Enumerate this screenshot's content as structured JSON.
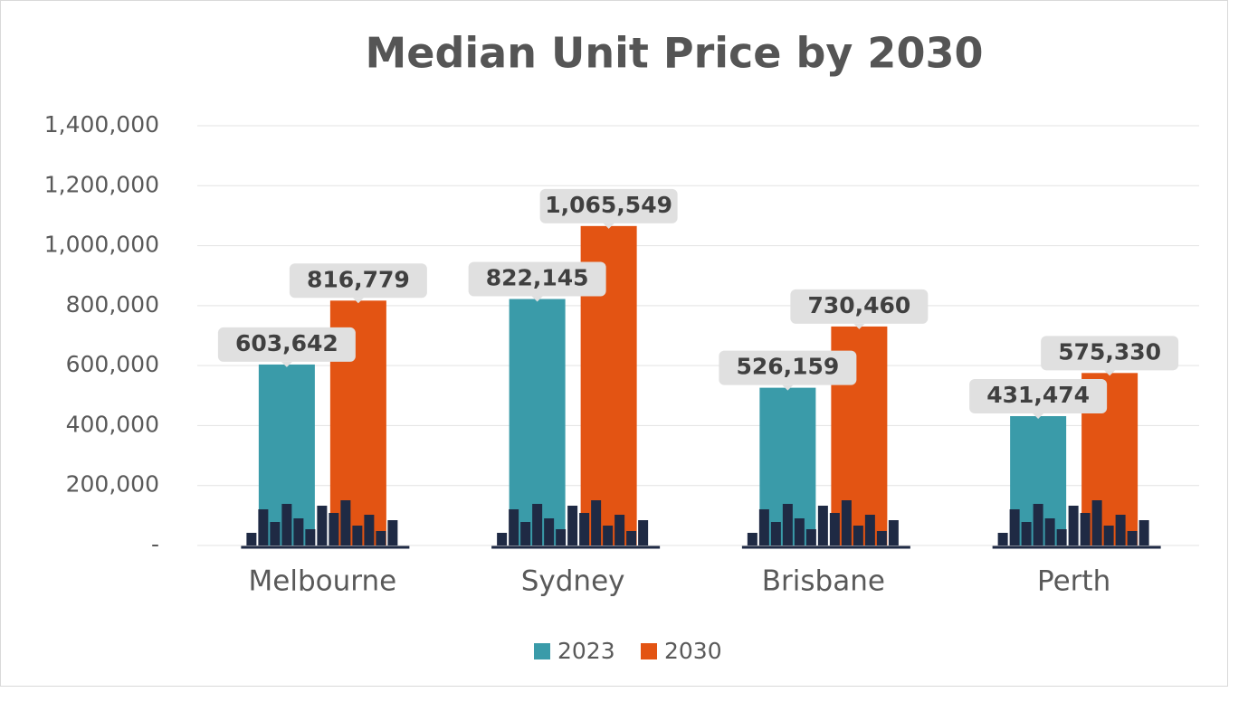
{
  "chart_data": {
    "type": "bar",
    "title": "Median Unit Price by 2030",
    "categories": [
      "Melbourne",
      "Sydney",
      "Brisbane",
      "Perth"
    ],
    "series": [
      {
        "name": "2023",
        "color": "#3a9ba9",
        "values": [
          603642,
          822145,
          526159,
          431474
        ],
        "value_labels": [
          "603,642",
          "822,145",
          "526,159",
          "431,474"
        ]
      },
      {
        "name": "2030",
        "color": "#e35413",
        "values": [
          816779,
          1065549,
          730460,
          575330
        ],
        "value_labels": [
          "816,779",
          "1,065,549",
          "730,460",
          "575,330"
        ]
      }
    ],
    "ylim": [
      0,
      1400000
    ],
    "yticks": [
      {
        "value": 0,
        "label": "-"
      },
      {
        "value": 200000,
        "label": "200,000"
      },
      {
        "value": 400000,
        "label": "400,000"
      },
      {
        "value": 600000,
        "label": "600,000"
      },
      {
        "value": 800000,
        "label": "800,000"
      },
      {
        "value": 1000000,
        "label": "1,000,000"
      },
      {
        "value": 1200000,
        "label": "1,200,000"
      },
      {
        "value": 1400000,
        "label": "1,400,000"
      }
    ],
    "grid": true,
    "legend": "bottom"
  }
}
